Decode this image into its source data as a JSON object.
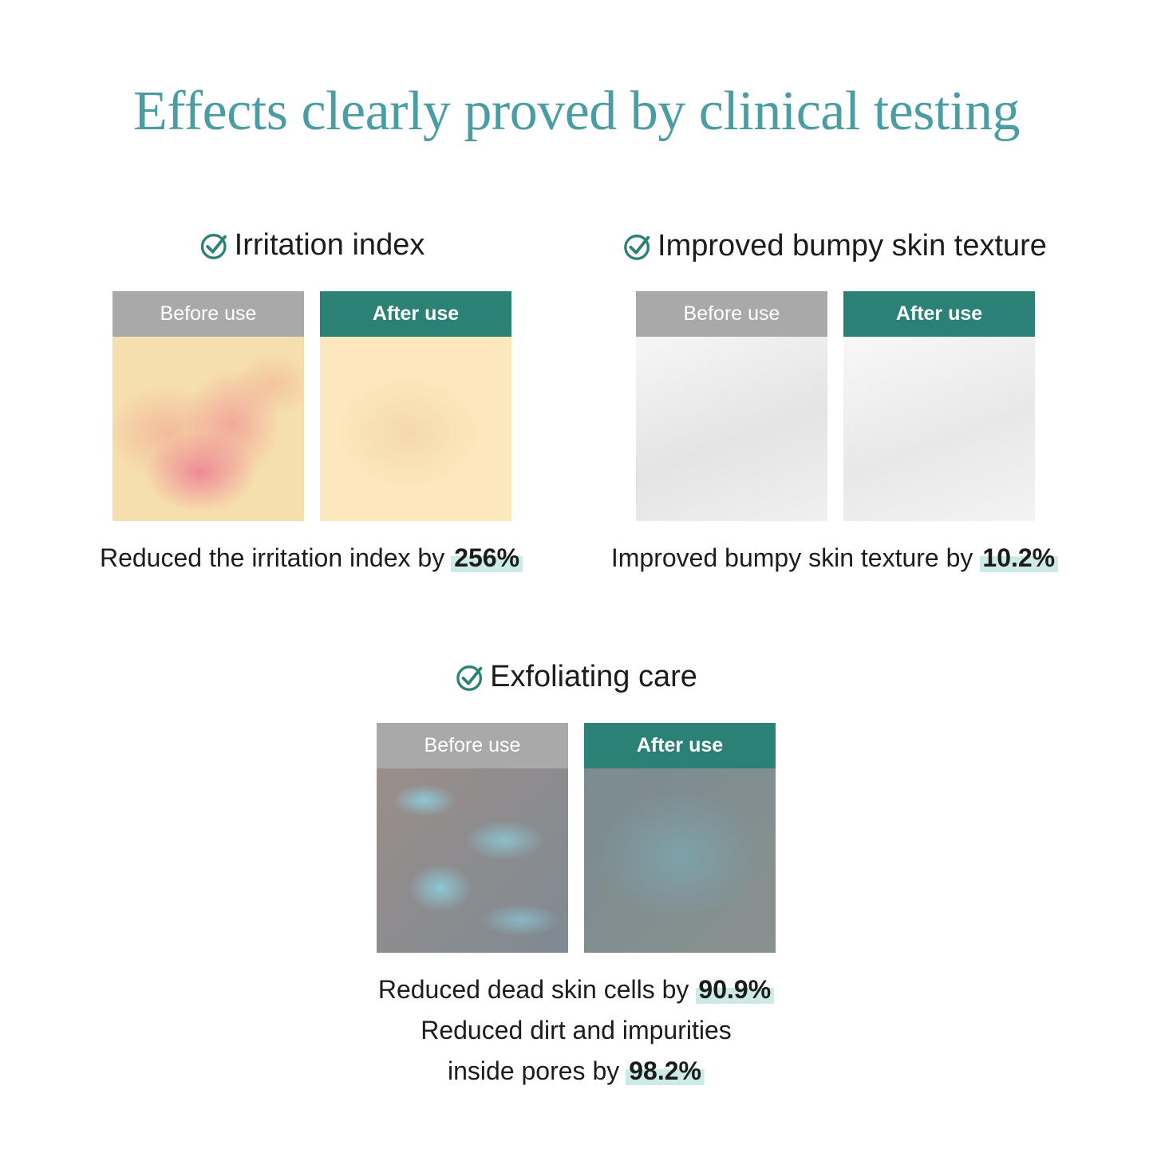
{
  "title": "Effects clearly proved by clinical testing",
  "colors": {
    "title": "#4a9ea3",
    "accent": "#2b8176",
    "before_header": "#a9a9a9",
    "highlight": "#cdeae6"
  },
  "labels": {
    "before": "Before use",
    "after": "After use"
  },
  "sections": [
    {
      "icon": "check-circle-icon",
      "title": "Irritation index",
      "result_text": "Reduced the irritation index by",
      "result_value": "256%"
    },
    {
      "icon": "check-circle-icon",
      "title": "Improved bumpy skin texture",
      "result_text": "Improved bumpy skin texture by",
      "result_value": "10.2%"
    },
    {
      "icon": "check-circle-icon",
      "title": "Exfoliating care",
      "result_line1_text": "Reduced dead skin cells by",
      "result_line1_value": "90.9%",
      "result_line2": "Reduced dirt and impurities",
      "result_line3_text": "inside pores by",
      "result_line3_value": "98.2%"
    }
  ]
}
